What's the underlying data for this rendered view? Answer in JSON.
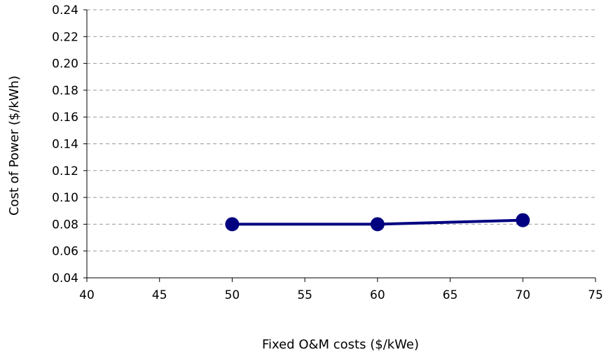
{
  "chart_data": {
    "type": "line",
    "title": "",
    "xlabel": "Fixed O&M costs ($/kWe)",
    "ylabel": "Cost of Power ($/kWh)",
    "xlim": [
      40,
      75
    ],
    "ylim": [
      0.04,
      0.24
    ],
    "xticks": [
      "40",
      "45",
      "50",
      "55",
      "60",
      "65",
      "70",
      "75"
    ],
    "yticks": [
      "0.04",
      "0.06",
      "0.08",
      "0.10",
      "0.12",
      "0.14",
      "0.16",
      "0.18",
      "0.20",
      "0.22",
      "0.24"
    ],
    "grid": "horizontal dashed",
    "legend": "none",
    "series": [
      {
        "x": [
          50,
          60,
          70
        ],
        "values": [
          0.08,
          0.08,
          0.083
        ],
        "color": "#000080"
      }
    ]
  }
}
